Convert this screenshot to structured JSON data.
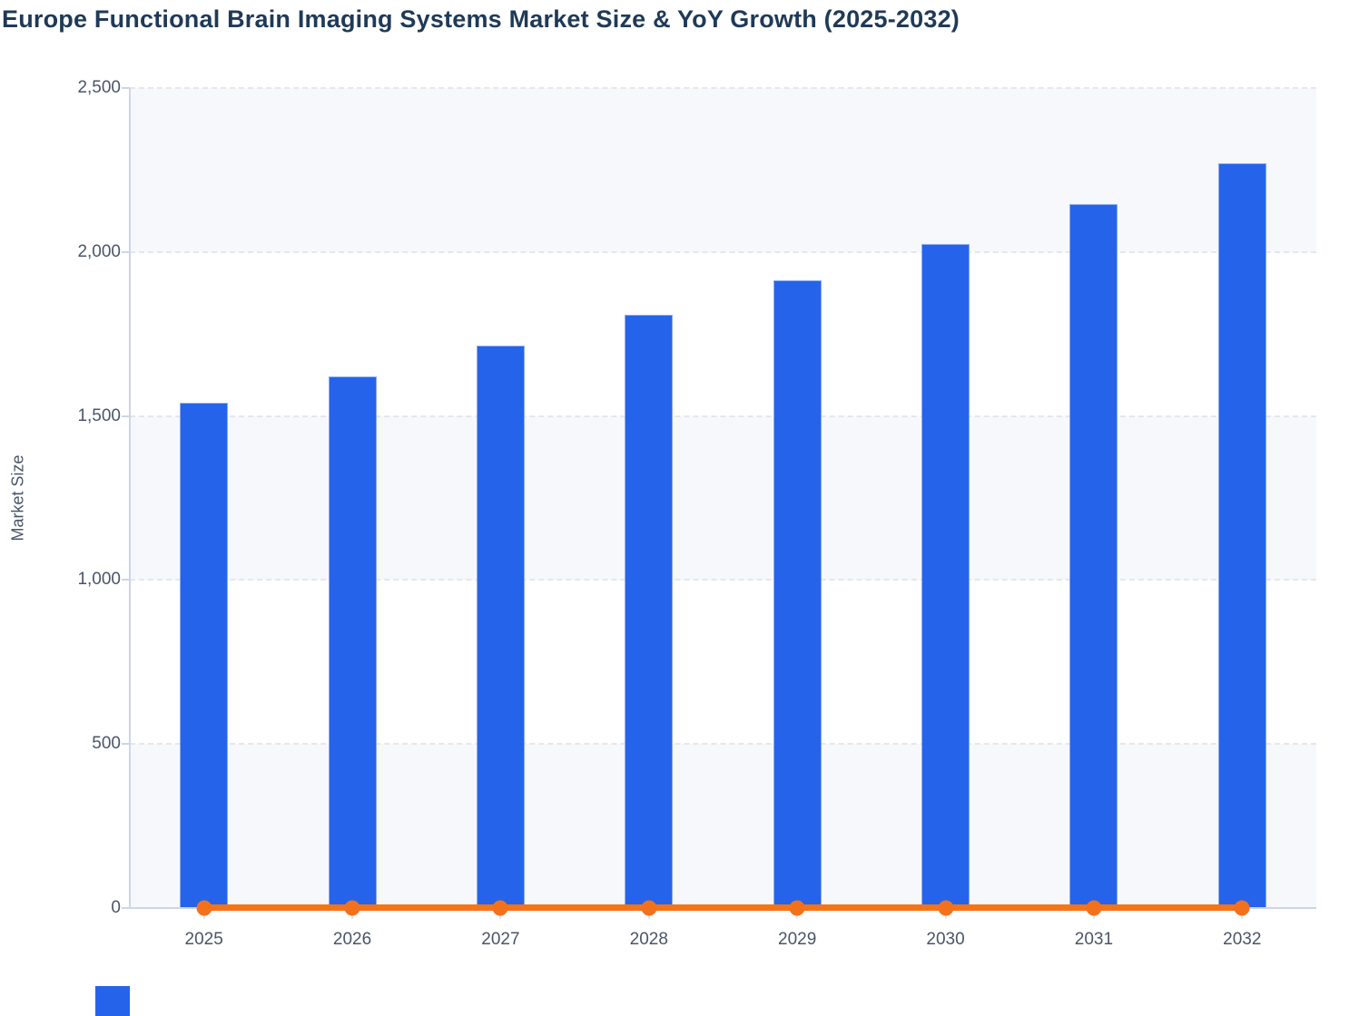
{
  "title": "Europe Functional Brain Imaging Systems Market Size & YoY Growth (2025-2032)",
  "y_axis_label": "Market Size",
  "colors": {
    "bar": "#2563eb",
    "bar_border": "#8aabf4",
    "line": "#f87316",
    "marker": "#f4711c",
    "title_text": "#1f3a57",
    "tick_text": "#4a5568",
    "axis": "#ccd5e8",
    "grid": "#e4e7ed",
    "band": "#f6f8fb",
    "band_alt": "#ffffff"
  },
  "chart_data": {
    "type": "bar",
    "title": "Europe Functional Brain Imaging Systems Market Size & YoY Growth (2025-2032)",
    "xlabel": "",
    "ylabel": "Market Size",
    "categories": [
      "2025",
      "2026",
      "2027",
      "2028",
      "2029",
      "2030",
      "2031",
      "2032"
    ],
    "series": [
      {
        "name": "Market Size",
        "type": "bar",
        "values": [
          1540,
          1620,
          1715,
          1810,
          1915,
          2025,
          2145,
          2270
        ]
      },
      {
        "name": "YoY Growth",
        "type": "line",
        "values": [
          0,
          0,
          0,
          0,
          0,
          0,
          0,
          0
        ],
        "note": "orange line with round markers drawn flat at the zero baseline; growth values are not labeled on the chart"
      }
    ],
    "ylim": [
      0,
      2500
    ],
    "y_ticks": [
      {
        "value": 2500,
        "label": "2,500"
      },
      {
        "value": 2000,
        "label": "2,000"
      },
      {
        "value": 1500,
        "label": "1,500"
      },
      {
        "value": 1000,
        "label": "1,000"
      },
      {
        "value": 500,
        "label": "500"
      },
      {
        "value": 0,
        "label": "0"
      }
    ],
    "grid": true,
    "grid_style": "dashed horizontal",
    "background_bands": "alternating light blue-gray / white horizontal bands",
    "legend_position": "none (clipped blue swatch at bottom-left edge)"
  }
}
